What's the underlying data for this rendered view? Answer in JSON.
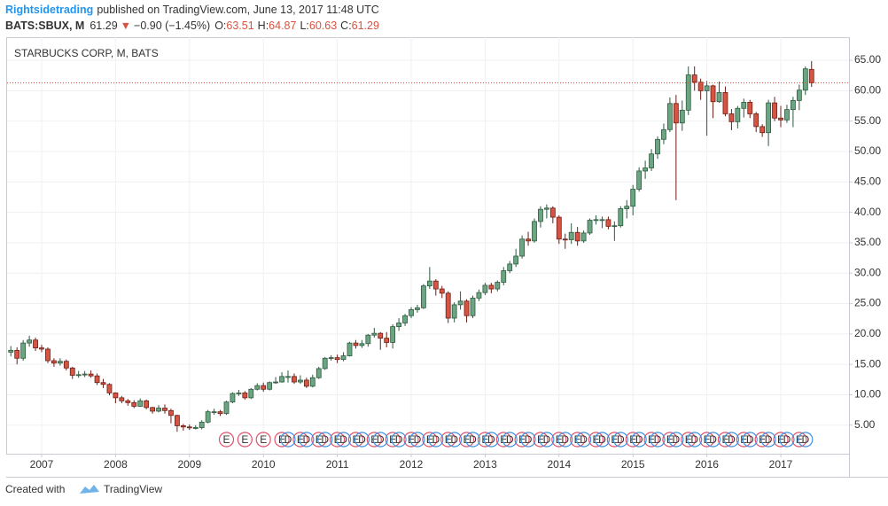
{
  "header": {
    "author": "Rightsidetrading",
    "published": "published on TradingView.com, June 13, 2017 11:48 UTC",
    "symbol": "BATS:SBUX, M",
    "arrow": "▼",
    "change": "−0.90 (−1.45%)",
    "o": "O:",
    "h": "H:",
    "l": "L:",
    "c": "C:"
  },
  "footer": {
    "created": "Created with",
    "brand": "TradingView"
  },
  "chart_data": {
    "type": "candlestick",
    "title": "STARBUCKS CORP, M, BATS",
    "x": [
      "2006-08",
      "2006-09",
      "2006-10",
      "2006-11",
      "2006-12",
      "2007-01",
      "2007-02",
      "2007-03",
      "2007-04",
      "2007-05",
      "2007-06",
      "2007-07",
      "2007-08",
      "2007-09",
      "2007-10",
      "2007-11",
      "2007-12",
      "2008-01",
      "2008-02",
      "2008-03",
      "2008-04",
      "2008-05",
      "2008-06",
      "2008-07",
      "2008-08",
      "2008-09",
      "2008-10",
      "2008-11",
      "2008-12",
      "2009-01",
      "2009-02",
      "2009-03",
      "2009-04",
      "2009-05",
      "2009-06",
      "2009-07",
      "2009-08",
      "2009-09",
      "2009-10",
      "2009-11",
      "2009-12",
      "2010-01",
      "2010-02",
      "2010-03",
      "2010-04",
      "2010-05",
      "2010-06",
      "2010-07",
      "2010-08",
      "2010-09",
      "2010-10",
      "2010-11",
      "2010-12",
      "2011-01",
      "2011-02",
      "2011-03",
      "2011-04",
      "2011-05",
      "2011-06",
      "2011-07",
      "2011-08",
      "2011-09",
      "2011-10",
      "2011-11",
      "2011-12",
      "2012-01",
      "2012-02",
      "2012-03",
      "2012-04",
      "2012-05",
      "2012-06",
      "2012-07",
      "2012-08",
      "2012-09",
      "2012-10",
      "2012-11",
      "2012-12",
      "2013-01",
      "2013-02",
      "2013-03",
      "2013-04",
      "2013-05",
      "2013-06",
      "2013-07",
      "2013-08",
      "2013-09",
      "2013-10",
      "2013-11",
      "2013-12",
      "2014-01",
      "2014-02",
      "2014-03",
      "2014-04",
      "2014-05",
      "2014-06",
      "2014-07",
      "2014-08",
      "2014-09",
      "2014-10",
      "2014-11",
      "2014-12",
      "2015-01",
      "2015-02",
      "2015-03",
      "2015-04",
      "2015-05",
      "2015-06",
      "2015-07",
      "2015-08",
      "2015-09",
      "2015-10",
      "2015-11",
      "2015-12",
      "2016-01",
      "2016-02",
      "2016-03",
      "2016-04",
      "2016-05",
      "2016-06",
      "2016-07",
      "2016-08",
      "2016-09",
      "2016-10",
      "2016-11",
      "2016-12",
      "2017-01",
      "2017-02",
      "2017-03",
      "2017-04",
      "2017-05",
      "2017-06"
    ],
    "open": [
      17.0,
      17.3,
      16.0,
      18.5,
      19.0,
      17.7,
      17.5,
      15.6,
      15.2,
      15.5,
      14.4,
      13.2,
      13.3,
      13.4,
      13.1,
      12.0,
      11.7,
      10.3,
      9.5,
      9.0,
      8.7,
      8.1,
      9.0,
      7.9,
      7.3,
      7.8,
      7.4,
      6.6,
      4.9,
      4.7,
      4.6,
      4.6,
      5.5,
      7.2,
      7.2,
      6.9,
      8.8,
      10.2,
      10.3,
      9.5,
      10.9,
      11.5,
      10.9,
      12.0,
      12.1,
      13.0,
      13.0,
      12.1,
      12.4,
      11.4,
      12.8,
      14.3,
      16.0,
      16.1,
      15.8,
      16.4,
      18.5,
      18.1,
      18.4,
      19.8,
      20.1,
      19.3,
      18.6,
      21.2,
      21.8,
      23.0,
      24.0,
      24.3,
      27.9,
      28.7,
      27.4,
      26.7,
      22.6,
      24.8,
      25.4,
      23.0,
      25.9,
      26.8,
      28.0,
      27.4,
      28.5,
      30.4,
      31.5,
      32.8,
      35.6,
      35.3,
      38.5,
      40.5,
      40.7,
      39.2,
      35.6,
      35.5,
      36.7,
      35.3,
      36.6,
      38.7,
      38.8,
      38.8,
      37.7,
      37.8,
      40.6,
      41.0,
      43.8,
      46.8,
      47.3,
      49.6,
      52.0,
      53.6,
      57.9,
      54.7,
      56.8,
      62.6,
      61.4,
      60.0,
      60.8,
      58.2,
      59.7,
      56.2,
      54.9,
      57.1,
      58.1,
      56.2,
      54.1,
      53.1,
      58.0,
      55.5,
      55.2,
      56.9,
      58.4,
      60.1,
      63.51
    ],
    "high": [
      18.0,
      17.8,
      19.0,
      19.7,
      19.4,
      18.2,
      17.8,
      16.0,
      16.0,
      15.8,
      14.6,
      13.9,
      13.9,
      14.0,
      13.5,
      12.6,
      11.9,
      10.4,
      9.8,
      9.3,
      9.1,
      9.4,
      9.2,
      8.0,
      8.3,
      8.4,
      7.7,
      6.7,
      5.2,
      5.1,
      5.0,
      5.8,
      7.5,
      7.7,
      7.5,
      9.0,
      10.4,
      10.8,
      10.6,
      11.1,
      11.9,
      12.0,
      12.2,
      12.9,
      13.7,
      14.0,
      13.5,
      13.2,
      12.8,
      13.3,
      14.6,
      16.2,
      16.5,
      16.6,
      17.0,
      18.7,
      19.0,
      19.0,
      20.0,
      21.0,
      20.3,
      20.3,
      21.6,
      22.6,
      23.3,
      24.4,
      24.8,
      28.2,
      31.0,
      29.0,
      27.9,
      27.0,
      25.2,
      27.0,
      25.7,
      26.3,
      27.3,
      28.4,
      28.4,
      28.8,
      31.0,
      32.0,
      34.0,
      36.2,
      36.8,
      39.0,
      41.0,
      41.3,
      41.0,
      39.5,
      36.5,
      38.2,
      37.6,
      37.0,
      39.0,
      39.5,
      39.3,
      39.3,
      38.5,
      41.0,
      42.0,
      44.5,
      47.4,
      48.5,
      50.4,
      52.5,
      54.6,
      58.9,
      59.3,
      58.4,
      64.0,
      64.0,
      62.0,
      61.6,
      61.0,
      61.5,
      60.7,
      57.0,
      57.5,
      58.7,
      58.5,
      56.5,
      54.5,
      58.5,
      59.0,
      57.5,
      57.7,
      59.0,
      61.0,
      64.0,
      64.87
    ],
    "low": [
      16.3,
      15.0,
      15.6,
      17.9,
      17.2,
      17.0,
      15.2,
      14.6,
      14.8,
      14.0,
      12.6,
      12.8,
      12.9,
      12.8,
      11.6,
      11.1,
      9.9,
      8.6,
      8.6,
      8.2,
      7.8,
      8.0,
      7.6,
      6.9,
      7.1,
      6.9,
      5.3,
      3.9,
      4.1,
      4.2,
      4.3,
      4.3,
      5.3,
      6.7,
      6.5,
      6.7,
      8.6,
      9.8,
      9.2,
      9.3,
      10.7,
      10.5,
      10.7,
      11.8,
      12.0,
      12.0,
      11.8,
      11.8,
      11.1,
      11.2,
      12.6,
      14.1,
      15.6,
      15.2,
      15.5,
      16.3,
      17.6,
      17.7,
      17.9,
      19.4,
      17.4,
      17.8,
      17.6,
      20.5,
      21.3,
      22.6,
      23.5,
      24.1,
      27.4,
      26.3,
      25.9,
      21.8,
      21.9,
      24.0,
      21.9,
      22.6,
      25.4,
      26.4,
      26.7,
      27.0,
      28.0,
      30.0,
      31.0,
      32.4,
      34.5,
      35.0,
      37.5,
      39.0,
      38.2,
      34.8,
      34.0,
      34.8,
      34.5,
      35.0,
      36.3,
      38.0,
      37.4,
      37.2,
      35.3,
      37.5,
      39.0,
      39.5,
      43.4,
      45.5,
      46.8,
      48.8,
      51.2,
      53.2,
      42.0,
      53.4,
      56.0,
      60.0,
      58.5,
      52.6,
      55.5,
      58.0,
      55.8,
      53.5,
      53.8,
      55.6,
      55.5,
      53.2,
      52.4,
      50.9,
      55.0,
      54.0,
      54.7,
      54.0,
      56.8,
      59.3,
      60.63
    ],
    "close": [
      17.3,
      16.0,
      18.5,
      19.0,
      17.7,
      17.5,
      15.6,
      15.2,
      15.5,
      14.4,
      13.2,
      13.3,
      13.4,
      13.1,
      12.0,
      11.7,
      10.3,
      9.5,
      9.0,
      8.7,
      8.1,
      9.0,
      7.9,
      7.3,
      7.8,
      7.4,
      6.6,
      4.9,
      4.7,
      4.6,
      4.6,
      5.5,
      7.2,
      7.2,
      6.9,
      8.8,
      10.2,
      10.3,
      9.5,
      10.9,
      11.5,
      10.9,
      12.0,
      12.1,
      13.0,
      13.0,
      12.1,
      12.4,
      11.4,
      12.8,
      14.3,
      16.0,
      16.1,
      15.8,
      16.4,
      18.5,
      18.1,
      18.4,
      19.8,
      20.1,
      19.3,
      18.6,
      21.2,
      21.8,
      23.0,
      24.0,
      24.3,
      27.9,
      28.7,
      27.4,
      26.7,
      22.6,
      24.8,
      25.4,
      23.0,
      25.9,
      26.8,
      28.0,
      27.4,
      28.5,
      30.4,
      31.5,
      32.8,
      35.6,
      35.3,
      38.5,
      40.5,
      40.7,
      39.2,
      35.6,
      35.5,
      36.7,
      35.3,
      36.6,
      38.7,
      38.8,
      38.8,
      37.7,
      37.8,
      40.6,
      41.0,
      43.8,
      46.8,
      47.3,
      49.6,
      52.0,
      53.6,
      57.9,
      54.7,
      56.8,
      62.6,
      61.4,
      60.0,
      60.8,
      58.2,
      59.7,
      56.2,
      54.9,
      57.1,
      58.1,
      56.2,
      54.1,
      53.1,
      58.0,
      55.5,
      55.2,
      56.9,
      58.4,
      60.1,
      63.6,
      61.29
    ],
    "ylim": [
      0.3,
      68.8
    ],
    "yticks": [
      {
        "value": 5,
        "label": "5.00"
      },
      {
        "value": 10,
        "label": "10.00"
      },
      {
        "value": 15,
        "label": "15.00"
      },
      {
        "value": 20,
        "label": "20.00"
      },
      {
        "value": 25,
        "label": "25.00"
      },
      {
        "value": 30,
        "label": "30.00"
      },
      {
        "value": 35,
        "label": "35.00"
      },
      {
        "value": 40,
        "label": "40.00"
      },
      {
        "value": 45,
        "label": "45.00"
      },
      {
        "value": 50,
        "label": "50.00"
      },
      {
        "value": 55,
        "label": "55.00"
      },
      {
        "value": 60,
        "label": "60.00"
      },
      {
        "value": 65,
        "label": "65.00"
      }
    ],
    "xticks": [
      2007,
      2008,
      2009,
      2010,
      2011,
      2012,
      2013,
      2014,
      2015,
      2016,
      2017
    ],
    "grid": true,
    "up_color": "#6ba583",
    "down_color": "#d75442",
    "price_line_color": "#d75442",
    "events": {
      "earnings": {
        "label": "E",
        "color": "#e0526a",
        "dates": [
          "2009-07",
          "2009-10",
          "2010-01",
          "2010-04",
          "2010-07",
          "2010-10",
          "2011-01",
          "2011-04",
          "2011-07",
          "2011-10",
          "2012-01",
          "2012-04",
          "2012-07",
          "2012-10",
          "2013-01",
          "2013-04",
          "2013-07",
          "2013-10",
          "2014-01",
          "2014-04",
          "2014-07",
          "2014-10",
          "2015-01",
          "2015-04",
          "2015-07",
          "2015-10",
          "2016-01",
          "2016-04",
          "2016-07",
          "2016-10",
          "2017-01",
          "2017-04"
        ]
      },
      "dividends": {
        "label": "D",
        "color": "#3c91e6",
        "dates": [
          "2010-05",
          "2010-08",
          "2010-11",
          "2011-02",
          "2011-05",
          "2011-08",
          "2011-11",
          "2012-02",
          "2012-05",
          "2012-08",
          "2012-11",
          "2013-02",
          "2013-05",
          "2013-08",
          "2013-11",
          "2014-02",
          "2014-05",
          "2014-08",
          "2014-11",
          "2015-02",
          "2015-05",
          "2015-08",
          "2015-11",
          "2016-02",
          "2016-05",
          "2016-08",
          "2016-11",
          "2017-02",
          "2017-05"
        ]
      }
    }
  }
}
